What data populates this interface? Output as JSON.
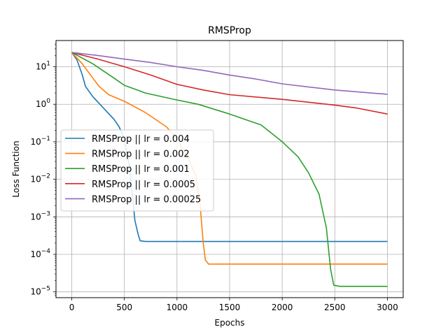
{
  "chart_data": {
    "type": "line",
    "title": "RMSProp",
    "xlabel": "Epochs",
    "ylabel": "Loss Function",
    "xlim": [
      -150,
      3150
    ],
    "ylim": [
      7e-06,
      50
    ],
    "yscale": "log",
    "grid": true,
    "legend_position": "center-left",
    "x_ticks": [
      {
        "value": 0,
        "label": "0"
      },
      {
        "value": 500,
        "label": "500"
      },
      {
        "value": 1000,
        "label": "1000"
      },
      {
        "value": 1500,
        "label": "1500"
      },
      {
        "value": 2000,
        "label": "2000"
      },
      {
        "value": 2500,
        "label": "2500"
      },
      {
        "value": 3000,
        "label": "3000"
      }
    ],
    "y_ticks": [
      {
        "value": 1e-05,
        "base": "10",
        "exp": "−5"
      },
      {
        "value": 0.0001,
        "base": "10",
        "exp": "−4"
      },
      {
        "value": 0.001,
        "base": "10",
        "exp": "−3"
      },
      {
        "value": 0.01,
        "base": "10",
        "exp": "−2"
      },
      {
        "value": 0.1,
        "base": "10",
        "exp": "−1"
      },
      {
        "value": 1,
        "base": "10",
        "exp": "0"
      },
      {
        "value": 10,
        "base": "10",
        "exp": "1"
      }
    ],
    "series": [
      {
        "name": "RMSProp || lr = 0.004",
        "color": "#1f77b4",
        "points": [
          [
            0,
            24
          ],
          [
            50,
            15
          ],
          [
            100,
            6
          ],
          [
            130,
            3
          ],
          [
            200,
            1.6
          ],
          [
            300,
            0.8
          ],
          [
            400,
            0.4
          ],
          [
            450,
            0.25
          ],
          [
            500,
            0.12
          ],
          [
            550,
            0.02
          ],
          [
            580,
            0.003
          ],
          [
            600,
            0.0008
          ],
          [
            630,
            0.00035
          ],
          [
            650,
            0.00023
          ],
          [
            700,
            0.00022
          ],
          [
            3000,
            0.00022
          ]
        ]
      },
      {
        "name": "RMSProp || lr = 0.002",
        "color": "#ff7f0e",
        "points": [
          [
            0,
            24
          ],
          [
            100,
            12
          ],
          [
            200,
            5
          ],
          [
            260,
            3
          ],
          [
            350,
            1.8
          ],
          [
            500,
            1.2
          ],
          [
            700,
            0.6
          ],
          [
            900,
            0.25
          ],
          [
            1000,
            0.12
          ],
          [
            1100,
            0.04
          ],
          [
            1180,
            0.012
          ],
          [
            1220,
            0.002
          ],
          [
            1250,
            0.0002
          ],
          [
            1270,
            7e-05
          ],
          [
            1300,
            5.5e-05
          ],
          [
            3000,
            5.5e-05
          ]
        ]
      },
      {
        "name": "RMSProp || lr = 0.001",
        "color": "#2ca02c",
        "points": [
          [
            0,
            24
          ],
          [
            200,
            12
          ],
          [
            400,
            5
          ],
          [
            500,
            3.2
          ],
          [
            700,
            2
          ],
          [
            1000,
            1.3
          ],
          [
            1200,
            1
          ],
          [
            1500,
            0.55
          ],
          [
            1800,
            0.28
          ],
          [
            2000,
            0.1
          ],
          [
            2150,
            0.04
          ],
          [
            2250,
            0.015
          ],
          [
            2350,
            0.004
          ],
          [
            2420,
            0.0005
          ],
          [
            2460,
            4e-05
          ],
          [
            2490,
            1.5e-05
          ],
          [
            2550,
            1.4e-05
          ],
          [
            3000,
            1.4e-05
          ]
        ]
      },
      {
        "name": "RMSProp || lr = 0.0005",
        "color": "#d62728",
        "points": [
          [
            0,
            24
          ],
          [
            250,
            16
          ],
          [
            500,
            10
          ],
          [
            750,
            6
          ],
          [
            1000,
            3.4
          ],
          [
            1250,
            2.4
          ],
          [
            1500,
            1.8
          ],
          [
            2000,
            1.35
          ],
          [
            2500,
            0.95
          ],
          [
            2700,
            0.8
          ],
          [
            3000,
            0.55
          ]
        ]
      },
      {
        "name": "RMSProp || lr = 0.00025",
        "color": "#9467bd",
        "points": [
          [
            0,
            24
          ],
          [
            250,
            20
          ],
          [
            500,
            16
          ],
          [
            750,
            13
          ],
          [
            1000,
            10
          ],
          [
            1250,
            8
          ],
          [
            1500,
            6
          ],
          [
            1750,
            4.7
          ],
          [
            2000,
            3.5
          ],
          [
            2250,
            2.9
          ],
          [
            2500,
            2.4
          ],
          [
            2750,
            2.1
          ],
          [
            3000,
            1.85
          ]
        ]
      }
    ]
  }
}
